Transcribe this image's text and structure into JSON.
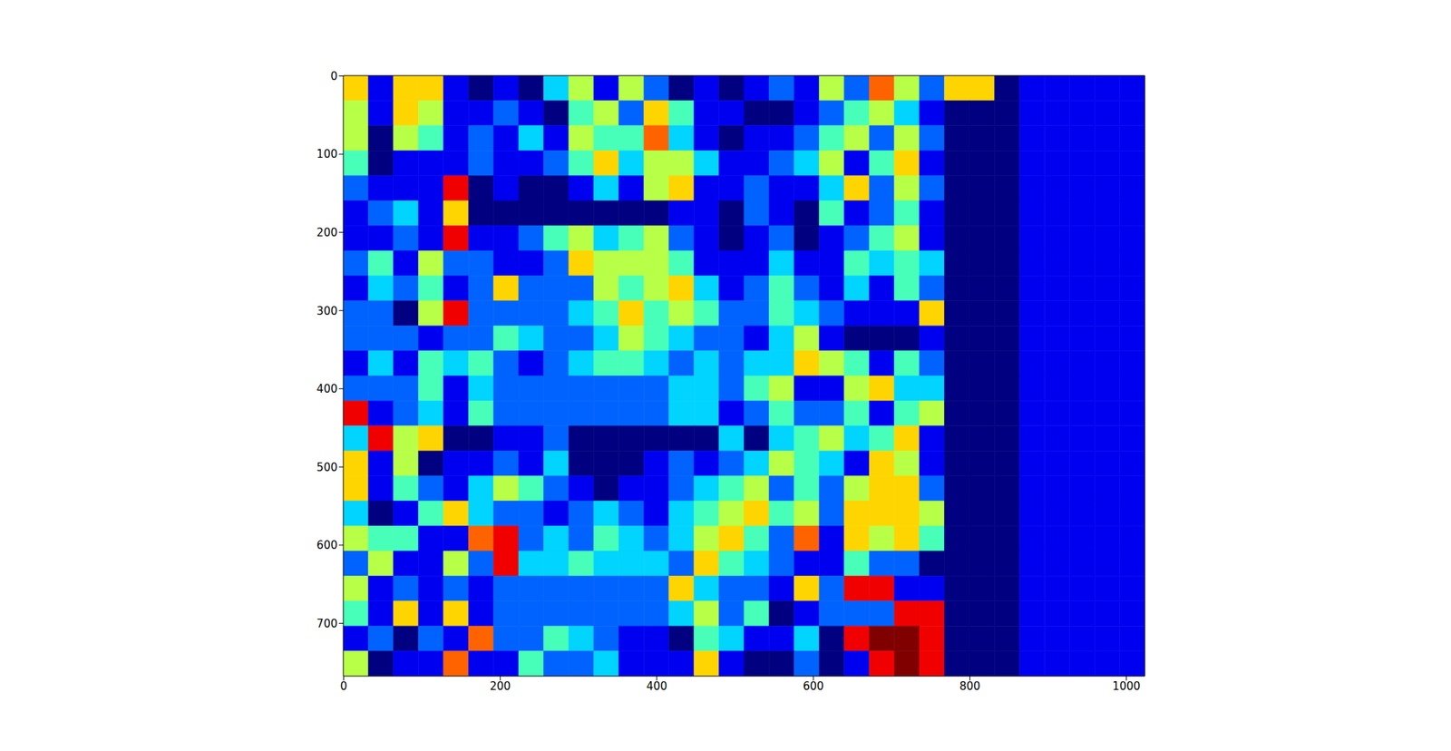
{
  "chart_data": {
    "type": "heatmap",
    "color": "jet",
    "xlim": [
      -0.5,
      1023.5
    ],
    "ylim": [
      767.5,
      -0.5
    ],
    "xticks": [
      0,
      200,
      400,
      600,
      800,
      1000
    ],
    "yticks": [
      0,
      100,
      200,
      300,
      400,
      500,
      600,
      700
    ],
    "zlim": [
      0,
      9
    ],
    "cells": [
      [
        6,
        1,
        6,
        6,
        1,
        0,
        1,
        0,
        3,
        5,
        1,
        5,
        2,
        0,
        1,
        0,
        1,
        2,
        1,
        5,
        2,
        7,
        5,
        2,
        6,
        6,
        0,
        1,
        1,
        1,
        1,
        1
      ],
      [
        5,
        1,
        6,
        5,
        1,
        1,
        2,
        1,
        0,
        4,
        5,
        2,
        6,
        4,
        1,
        1,
        0,
        0,
        1,
        2,
        4,
        5,
        3,
        1,
        0,
        0,
        0,
        1,
        1,
        1,
        1,
        1
      ],
      [
        5,
        0,
        5,
        4,
        1,
        2,
        1,
        3,
        1,
        5,
        4,
        4,
        7,
        3,
        1,
        0,
        1,
        1,
        2,
        4,
        5,
        2,
        5,
        2,
        0,
        0,
        0,
        1,
        1,
        1,
        1,
        1
      ],
      [
        4,
        0,
        1,
        1,
        1,
        2,
        1,
        1,
        2,
        4,
        6,
        3,
        5,
        5,
        3,
        1,
        1,
        2,
        3,
        5,
        1,
        4,
        6,
        1,
        0,
        0,
        0,
        1,
        1,
        1,
        1,
        1
      ],
      [
        2,
        1,
        1,
        1,
        8,
        0,
        1,
        0,
        0,
        1,
        3,
        1,
        5,
        6,
        1,
        1,
        2,
        1,
        1,
        3,
        6,
        2,
        5,
        2,
        0,
        0,
        0,
        1,
        1,
        1,
        1,
        1
      ],
      [
        1,
        2,
        3,
        1,
        6,
        0,
        0,
        0,
        0,
        0,
        0,
        0,
        0,
        1,
        1,
        0,
        2,
        1,
        0,
        4,
        1,
        2,
        4,
        1,
        0,
        0,
        0,
        1,
        1,
        1,
        1,
        1
      ],
      [
        1,
        1,
        2,
        1,
        8,
        1,
        1,
        2,
        4,
        5,
        3,
        4,
        5,
        2,
        1,
        0,
        1,
        2,
        0,
        1,
        2,
        4,
        5,
        1,
        0,
        0,
        0,
        1,
        1,
        1,
        1,
        1
      ],
      [
        2,
        4,
        1,
        5,
        2,
        2,
        1,
        1,
        2,
        6,
        5,
        5,
        5,
        4,
        1,
        1,
        1,
        3,
        1,
        1,
        4,
        3,
        4,
        3,
        0,
        0,
        0,
        1,
        1,
        1,
        1,
        1
      ],
      [
        1,
        3,
        2,
        4,
        1,
        2,
        6,
        2,
        2,
        2,
        5,
        4,
        5,
        6,
        3,
        1,
        2,
        4,
        2,
        1,
        3,
        1,
        4,
        2,
        0,
        0,
        0,
        1,
        1,
        1,
        1,
        1
      ],
      [
        2,
        2,
        0,
        5,
        8,
        2,
        2,
        2,
        2,
        3,
        4,
        6,
        4,
        5,
        4,
        2,
        2,
        4,
        3,
        2,
        1,
        1,
        1,
        6,
        0,
        0,
        0,
        1,
        1,
        1,
        1,
        1
      ],
      [
        2,
        2,
        2,
        1,
        2,
        2,
        4,
        3,
        2,
        2,
        3,
        5,
        4,
        3,
        2,
        2,
        1,
        3,
        5,
        1,
        0,
        0,
        0,
        1,
        0,
        0,
        0,
        1,
        1,
        1,
        1,
        1
      ],
      [
        1,
        3,
        1,
        4,
        3,
        4,
        2,
        1,
        2,
        3,
        4,
        4,
        3,
        2,
        3,
        2,
        3,
        3,
        6,
        5,
        4,
        1,
        4,
        2,
        0,
        0,
        0,
        1,
        1,
        1,
        1,
        1
      ],
      [
        2,
        2,
        2,
        4,
        1,
        3,
        2,
        2,
        2,
        2,
        2,
        2,
        2,
        3,
        3,
        2,
        4,
        5,
        1,
        1,
        5,
        6,
        3,
        3,
        0,
        0,
        0,
        1,
        1,
        1,
        1,
        1
      ],
      [
        8,
        1,
        2,
        3,
        1,
        4,
        2,
        2,
        2,
        2,
        2,
        2,
        2,
        3,
        3,
        1,
        2,
        4,
        2,
        2,
        4,
        1,
        4,
        5,
        0,
        0,
        0,
        1,
        1,
        1,
        1,
        1
      ],
      [
        3,
        8,
        5,
        6,
        0,
        0,
        1,
        1,
        2,
        0,
        0,
        0,
        0,
        0,
        0,
        3,
        0,
        3,
        4,
        5,
        3,
        4,
        6,
        1,
        0,
        0,
        0,
        1,
        1,
        1,
        1,
        1
      ],
      [
        6,
        1,
        5,
        0,
        1,
        1,
        2,
        1,
        3,
        0,
        0,
        0,
        1,
        2,
        1,
        2,
        3,
        5,
        4,
        3,
        1,
        6,
        5,
        1,
        0,
        0,
        0,
        1,
        1,
        1,
        1,
        1
      ],
      [
        6,
        1,
        4,
        2,
        1,
        3,
        5,
        4,
        2,
        1,
        0,
        1,
        1,
        2,
        3,
        4,
        5,
        2,
        4,
        2,
        5,
        6,
        6,
        2,
        0,
        0,
        0,
        1,
        1,
        1,
        1,
        1
      ],
      [
        3,
        0,
        1,
        4,
        6,
        3,
        2,
        2,
        1,
        2,
        3,
        2,
        1,
        3,
        4,
        5,
        6,
        4,
        5,
        2,
        6,
        6,
        6,
        5,
        0,
        0,
        0,
        1,
        1,
        1,
        1,
        1
      ],
      [
        5,
        4,
        4,
        1,
        1,
        7,
        8,
        2,
        3,
        2,
        4,
        3,
        2,
        3,
        5,
        6,
        4,
        2,
        7,
        1,
        6,
        5,
        6,
        4,
        0,
        0,
        0,
        1,
        1,
        1,
        1,
        1
      ],
      [
        2,
        5,
        1,
        1,
        5,
        2,
        8,
        3,
        3,
        4,
        3,
        3,
        3,
        2,
        6,
        4,
        3,
        2,
        1,
        1,
        4,
        2,
        2,
        0,
        0,
        0,
        0,
        1,
        1,
        1,
        1,
        1
      ],
      [
        5,
        1,
        2,
        1,
        2,
        1,
        2,
        2,
        2,
        2,
        2,
        2,
        2,
        6,
        3,
        2,
        2,
        1,
        6,
        2,
        8,
        8,
        1,
        1,
        0,
        0,
        0,
        1,
        1,
        1,
        1,
        1
      ],
      [
        4,
        1,
        6,
        1,
        6,
        1,
        2,
        2,
        2,
        2,
        2,
        2,
        2,
        3,
        5,
        2,
        4,
        0,
        1,
        2,
        2,
        2,
        8,
        8,
        0,
        0,
        0,
        1,
        1,
        1,
        1,
        1
      ],
      [
        1,
        2,
        0,
        2,
        1,
        7,
        2,
        2,
        4,
        3,
        2,
        1,
        1,
        0,
        4,
        3,
        1,
        1,
        3,
        0,
        8,
        9,
        9,
        8,
        0,
        0,
        0,
        1,
        1,
        1,
        1,
        1
      ],
      [
        5,
        0,
        1,
        1,
        7,
        1,
        1,
        4,
        2,
        2,
        3,
        1,
        1,
        1,
        6,
        1,
        0,
        0,
        2,
        0,
        1,
        8,
        9,
        8,
        0,
        0,
        0,
        1,
        1,
        1,
        1,
        1
      ]
    ]
  }
}
